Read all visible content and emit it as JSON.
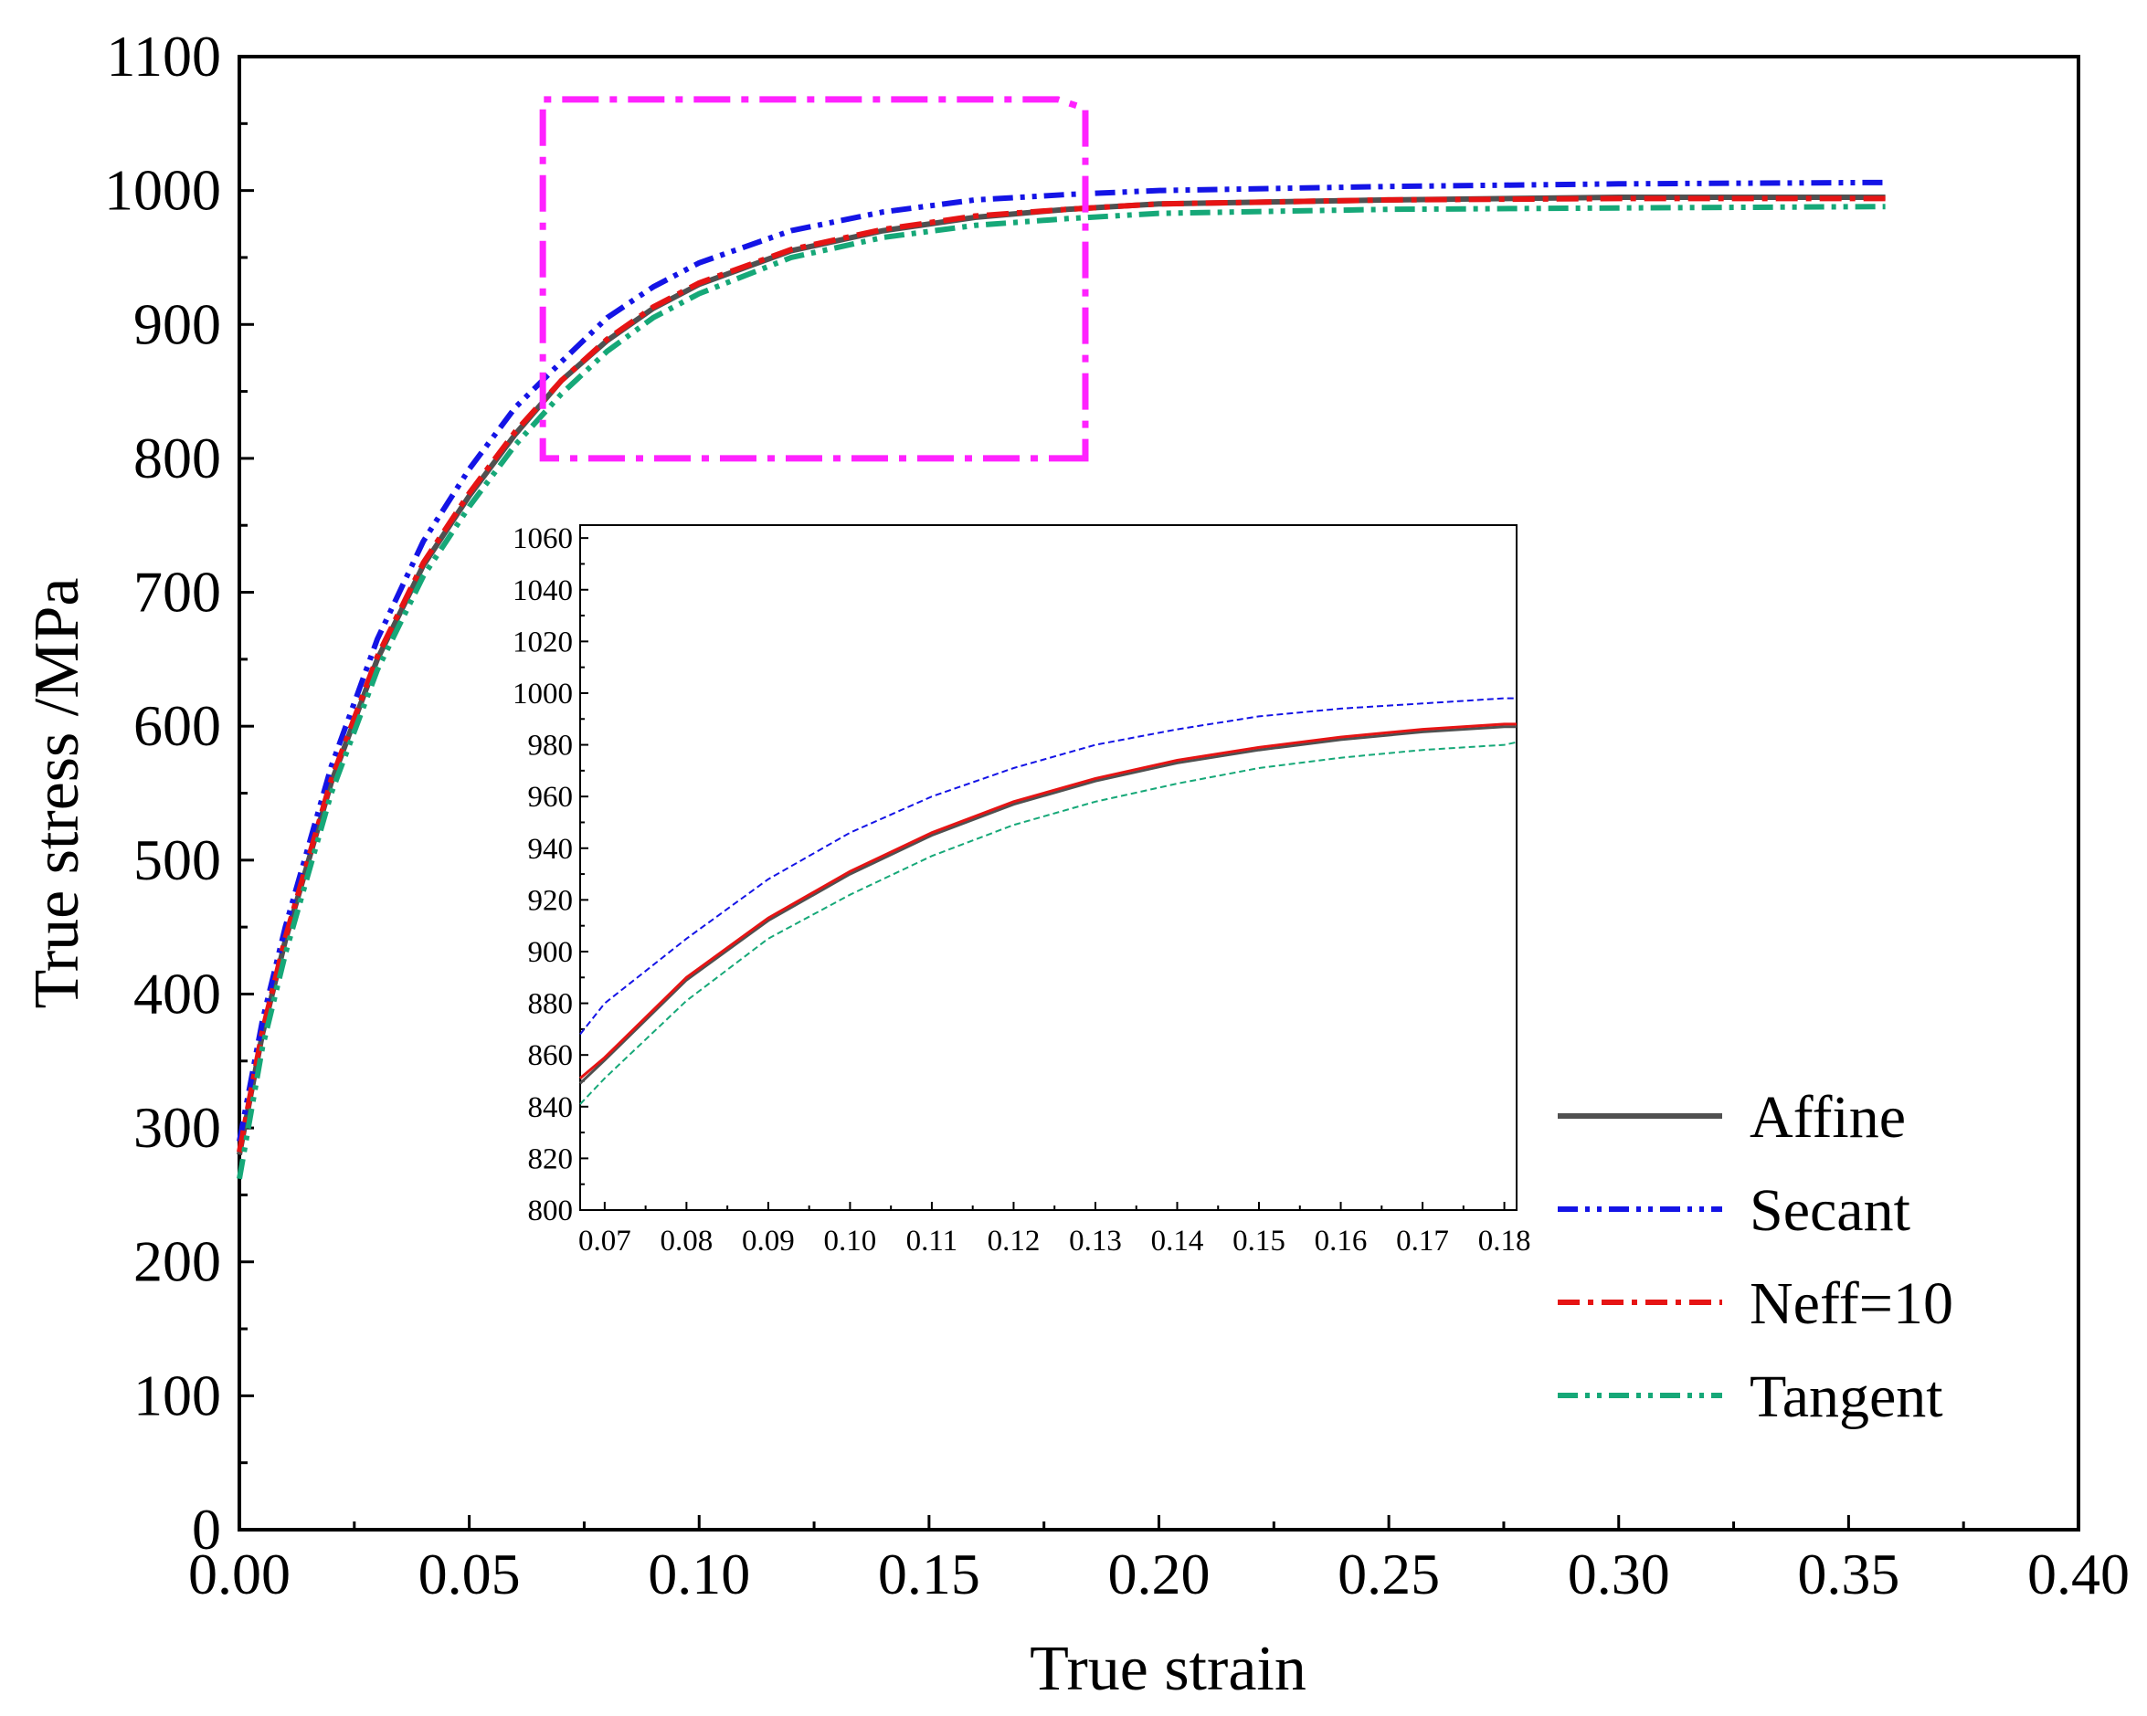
{
  "chart_data": [
    {
      "type": "line",
      "xlabel": "True strain",
      "ylabel": "True stress /MPa",
      "xlim": [
        0,
        0.4
      ],
      "ylim": [
        0,
        1100
      ],
      "xticks": [
        "0.00",
        "0.05",
        "0.10",
        "0.15",
        "0.20",
        "0.25",
        "0.30",
        "0.35",
        "0.40"
      ],
      "yticks": [
        "0",
        "100",
        "200",
        "300",
        "400",
        "500",
        "600",
        "700",
        "800",
        "900",
        "1000",
        "1100"
      ],
      "legend": [
        "Affine",
        "Secant",
        "Neff=10",
        "Tangent"
      ],
      "legend_position": "bottom-right",
      "series": [
        {
          "name": "Affine",
          "color": "#505050",
          "style": "solid",
          "x": [
            0.0,
            0.005,
            0.01,
            0.02,
            0.03,
            0.04,
            0.05,
            0.06,
            0.07,
            0.08,
            0.09,
            0.1,
            0.12,
            0.14,
            0.16,
            0.18,
            0.2,
            0.25,
            0.3,
            0.358
          ],
          "y": [
            280,
            370,
            440,
            558,
            650,
            720,
            772,
            818,
            858,
            888,
            912,
            930,
            955,
            970,
            980,
            986,
            990,
            993,
            995,
            995
          ]
        },
        {
          "name": "Secant",
          "color": "#1414e6",
          "style": "dash-dot-dot",
          "x": [
            0.0,
            0.005,
            0.01,
            0.02,
            0.03,
            0.04,
            0.05,
            0.06,
            0.07,
            0.08,
            0.09,
            0.1,
            0.12,
            0.14,
            0.16,
            0.18,
            0.2,
            0.25,
            0.3,
            0.358
          ],
          "y": [
            290,
            380,
            450,
            570,
            665,
            738,
            792,
            838,
            872,
            905,
            928,
            946,
            970,
            984,
            993,
            997,
            1000,
            1003,
            1005,
            1006
          ]
        },
        {
          "name": "Neff=10",
          "color": "#e61414",
          "style": "dash-dot",
          "x": [
            0.0,
            0.005,
            0.01,
            0.02,
            0.03,
            0.04,
            0.05,
            0.06,
            0.07,
            0.08,
            0.09,
            0.1,
            0.12,
            0.14,
            0.16,
            0.18,
            0.2,
            0.25,
            0.3,
            0.358
          ],
          "y": [
            282,
            372,
            442,
            560,
            652,
            722,
            774,
            820,
            858,
            889,
            913,
            931,
            956,
            971,
            981,
            986,
            990,
            993,
            994,
            994
          ]
        },
        {
          "name": "Tangent",
          "color": "#16a878",
          "style": "dash-dot-dot",
          "x": [
            0.0,
            0.005,
            0.01,
            0.02,
            0.03,
            0.04,
            0.05,
            0.06,
            0.07,
            0.08,
            0.09,
            0.1,
            0.12,
            0.14,
            0.16,
            0.18,
            0.2,
            0.25,
            0.3,
            0.358
          ],
          "y": [
            262,
            360,
            430,
            550,
            642,
            712,
            764,
            810,
            848,
            880,
            905,
            923,
            950,
            965,
            974,
            979,
            983,
            986,
            987,
            988
          ]
        }
      ],
      "highlight_box": {
        "x_range": [
          0.066,
          0.184
        ],
        "y_range": [
          800,
          1068
        ],
        "color": "#ff22ff"
      }
    },
    {
      "type": "line",
      "role": "inset",
      "xlim": [
        0.067,
        0.1815
      ],
      "ylim": [
        800,
        1065
      ],
      "xticks": [
        "0.07",
        "0.08",
        "0.09",
        "0.10",
        "0.11",
        "0.12",
        "0.13",
        "0.14",
        "0.15",
        "0.16",
        "0.17",
        "0.18"
      ],
      "yticks": [
        "800",
        "820",
        "840",
        "860",
        "880",
        "900",
        "920",
        "940",
        "960",
        "980",
        "1000",
        "1020",
        "1040",
        "1060"
      ],
      "series": [
        {
          "name": "Affine",
          "color": "#505050",
          "x": [
            0.067,
            0.07,
            0.08,
            0.09,
            0.1,
            0.11,
            0.12,
            0.13,
            0.14,
            0.15,
            0.16,
            0.17,
            0.18,
            0.1815
          ],
          "y": [
            849,
            858,
            889,
            912,
            930,
            945,
            957,
            966,
            973,
            978,
            982,
            985,
            987,
            987
          ]
        },
        {
          "name": "Secant",
          "color": "#1414e6",
          "x": [
            0.067,
            0.07,
            0.08,
            0.09,
            0.1,
            0.11,
            0.12,
            0.13,
            0.14,
            0.15,
            0.16,
            0.17,
            0.18,
            0.1815
          ],
          "y": [
            868,
            880,
            905,
            928,
            946,
            960,
            971,
            980,
            986,
            991,
            994,
            996,
            998,
            998
          ]
        },
        {
          "name": "Neff=10",
          "color": "#e61414",
          "x": [
            0.067,
            0.07,
            0.08,
            0.09,
            0.1,
            0.11,
            0.12,
            0.13,
            0.14,
            0.15,
            0.16,
            0.17,
            0.18,
            0.1815
          ],
          "y": [
            851,
            859,
            890,
            913,
            931,
            946,
            958,
            967,
            974,
            979,
            983,
            986,
            988,
            988
          ]
        },
        {
          "name": "Tangent",
          "color": "#16a878",
          "x": [
            0.067,
            0.07,
            0.08,
            0.09,
            0.1,
            0.11,
            0.12,
            0.13,
            0.14,
            0.15,
            0.16,
            0.17,
            0.18,
            0.1815
          ],
          "y": [
            841,
            851,
            881,
            905,
            922,
            937,
            949,
            958,
            965,
            971,
            975,
            978,
            980,
            981
          ]
        }
      ]
    }
  ]
}
